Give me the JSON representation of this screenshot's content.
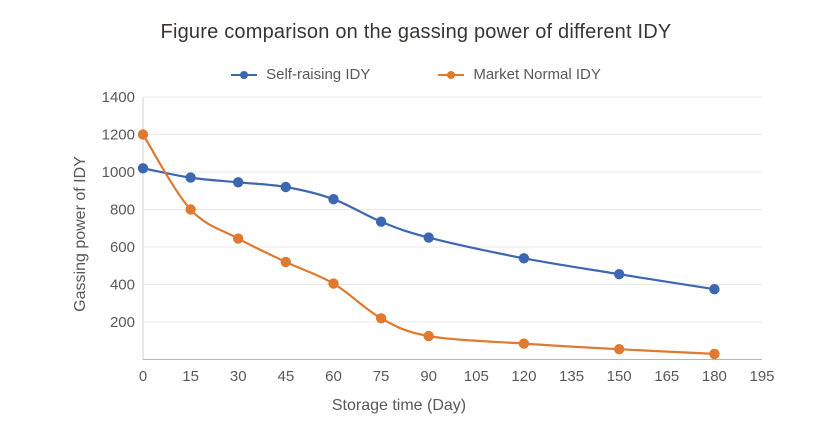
{
  "chart_data": {
    "type": "line",
    "title": "Figure comparison on the gassing power of different IDY",
    "xlabel": "Storage time (Day)",
    "ylabel": "Gassing power of IDY",
    "xlim": [
      0,
      195
    ],
    "ylim": [
      0,
      1400
    ],
    "x_ticks": [
      0,
      15,
      30,
      45,
      60,
      75,
      90,
      105,
      120,
      135,
      150,
      165,
      180,
      195
    ],
    "y_ticks": [
      200,
      400,
      600,
      800,
      1000,
      1200,
      1400
    ],
    "grid": "horizontal-only",
    "legend_position": "top-center",
    "line_style": "smooth-with-markers",
    "legend_marker_icon": "line-dot",
    "series": [
      {
        "name": "Self-raising IDY",
        "color": "#3e67b1",
        "x": [
          0,
          15,
          30,
          45,
          60,
          75,
          90,
          120,
          150,
          180
        ],
        "y": [
          1020,
          970,
          945,
          920,
          855,
          735,
          650,
          540,
          455,
          375
        ]
      },
      {
        "name": "Market Normal IDY",
        "color": "#df7a30",
        "x": [
          0,
          15,
          30,
          45,
          60,
          75,
          90,
          120,
          150,
          180
        ],
        "y": [
          1200,
          800,
          645,
          520,
          405,
          220,
          125,
          85,
          55,
          30
        ]
      }
    ],
    "colors": {
      "title_text": "#3a3532",
      "tick_label": "#595959",
      "axis_title": "#595959",
      "legend_text": "#595959",
      "gridline": "#e9e9e9",
      "x_axis_line": "#b5b5b5",
      "y_axis_line": "#d2d2d2",
      "background": "#ffffff"
    }
  }
}
